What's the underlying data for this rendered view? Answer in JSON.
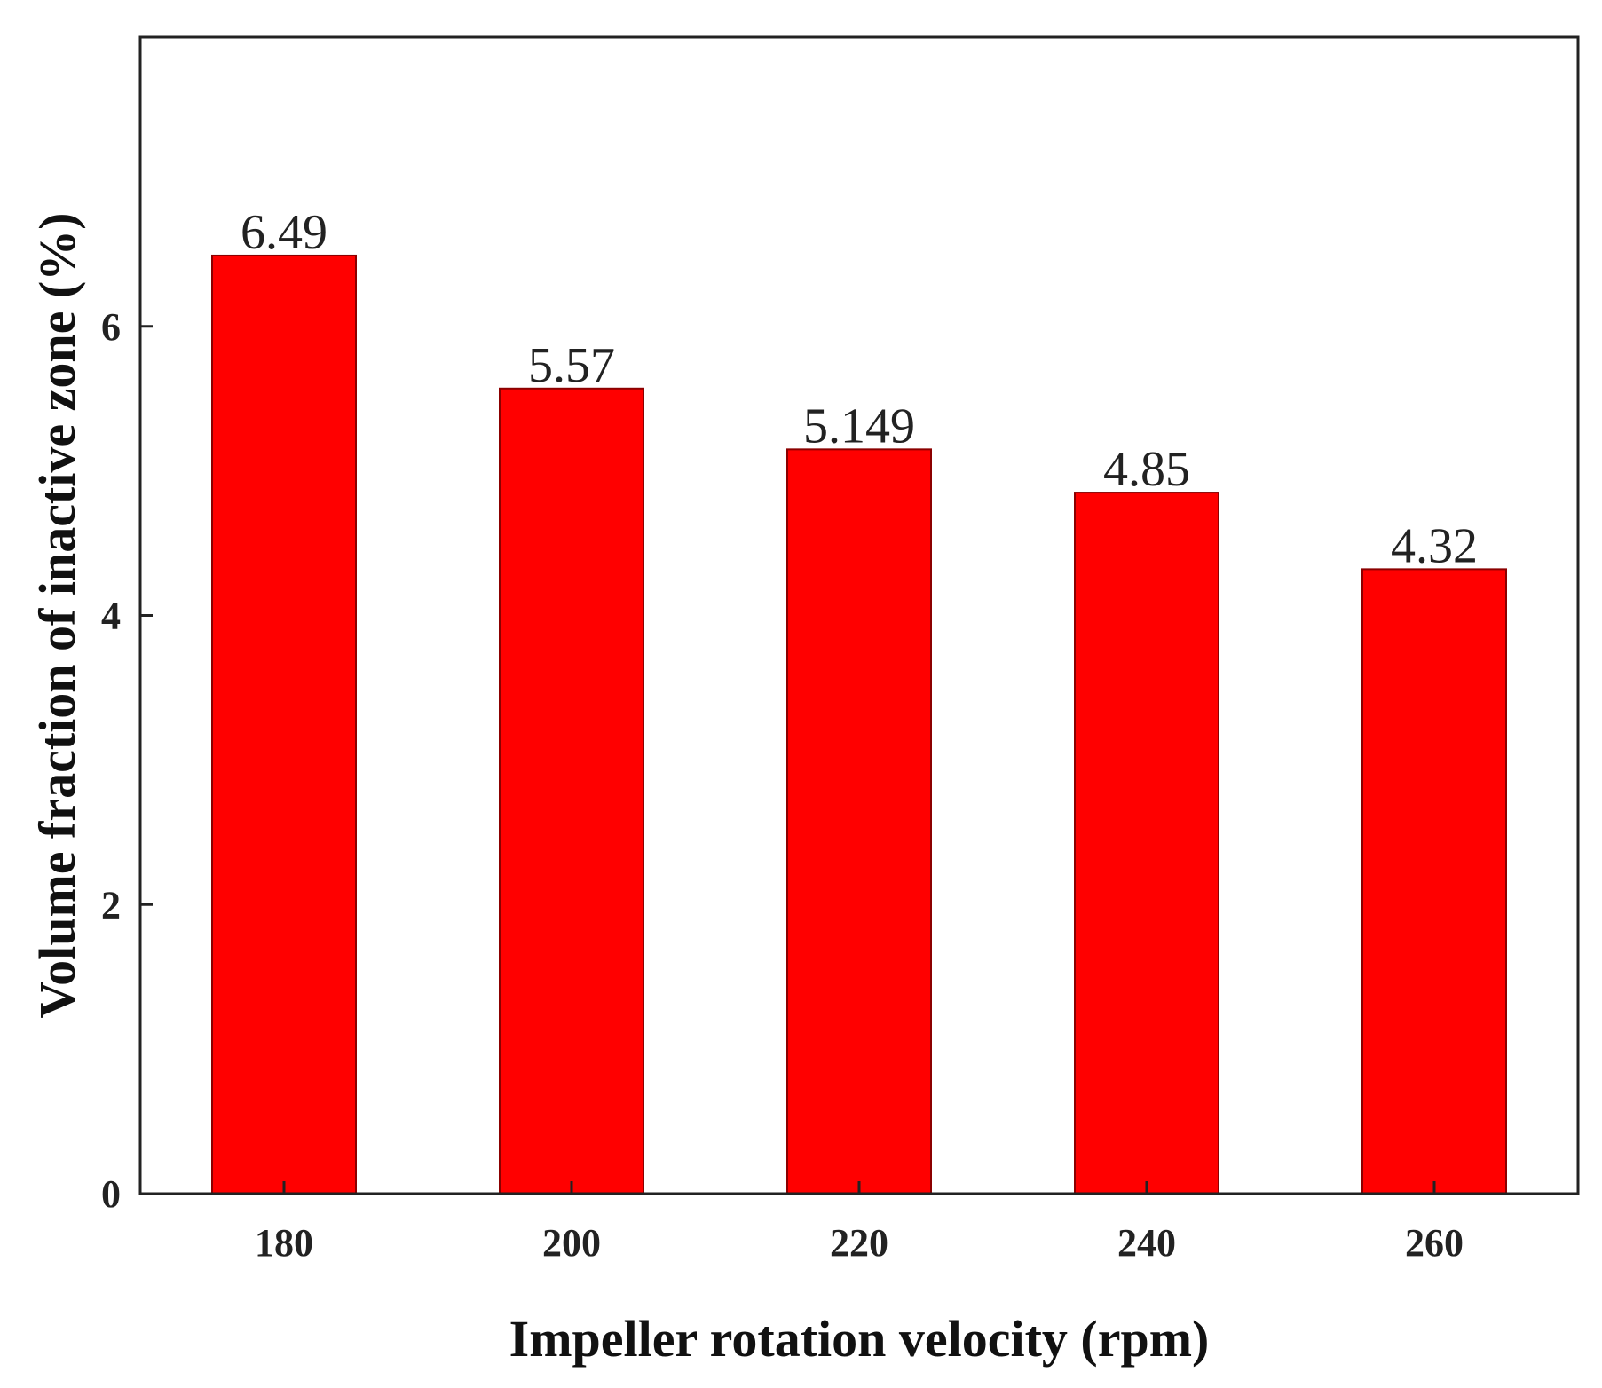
{
  "chart_data": {
    "type": "bar",
    "title": "",
    "xlabel": "Impeller rotation velocity (rpm)",
    "ylabel": "Volume fraction of inactive zone (%)",
    "categories": [
      "180",
      "200",
      "220",
      "240",
      "260"
    ],
    "values": [
      6.49,
      5.57,
      5.149,
      4.85,
      4.32
    ],
    "value_labels": [
      "6.49",
      "5.57",
      "5.149",
      "4.85",
      "4.32"
    ],
    "ylim": [
      0,
      8
    ],
    "yticks": [
      0,
      2,
      4,
      6
    ],
    "ytick_labels": [
      "0",
      "2",
      "4",
      "6"
    ],
    "grid": false,
    "legend": "none",
    "bar_color": "#ff0000",
    "bar_edge_color": "#8b0000",
    "axis_color": "#222222"
  }
}
